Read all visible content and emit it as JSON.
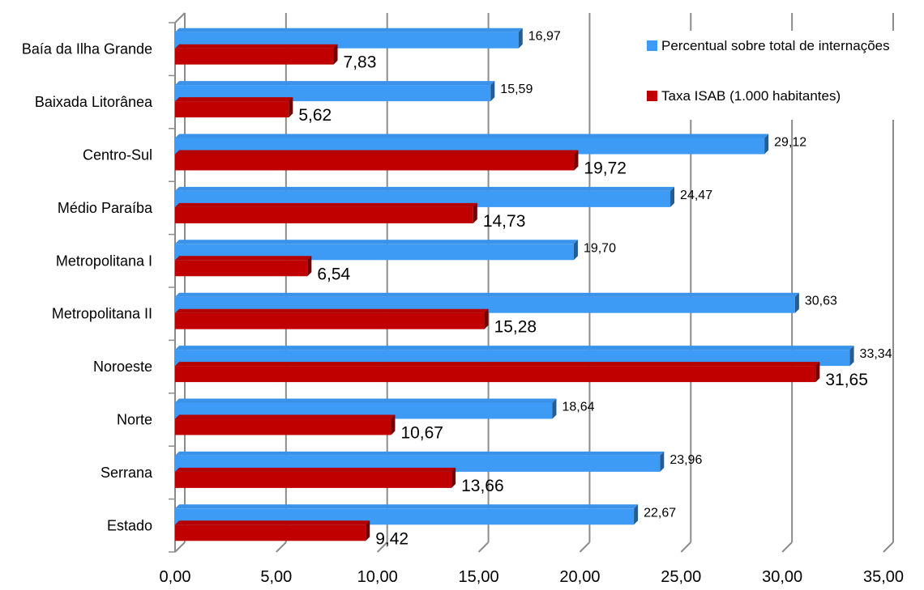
{
  "chart_data": {
    "type": "bar",
    "orientation": "horizontal",
    "categories": [
      "Baía da Ilha Grande",
      "Baixada Litorânea",
      "Centro-Sul",
      "Médio Paraíba",
      "Metropolitana I",
      "Metropolitana II",
      "Noroeste",
      "Norte",
      "Serrana",
      "Estado"
    ],
    "series": [
      {
        "name": "Percentual sobre total de internações",
        "color": "#3d9bf5",
        "values": [
          16.97,
          15.59,
          29.12,
          24.47,
          19.7,
          30.63,
          33.34,
          18.64,
          23.96,
          22.67
        ],
        "labels": [
          "16,97",
          "15,59",
          "29,12",
          "24,47",
          "19,70",
          "30,63",
          "33,34",
          "18,64",
          "23,96",
          "22,67"
        ]
      },
      {
        "name": "Taxa ISAB (1.000 habitantes)",
        "color": "#c00000",
        "values": [
          7.83,
          5.62,
          19.72,
          14.73,
          6.54,
          15.28,
          31.65,
          10.67,
          13.66,
          9.42
        ],
        "labels": [
          "7,83",
          "5,62",
          "19,72",
          "14,73",
          "6,54",
          "15,28",
          "31,65",
          "10,67",
          "13,66",
          "9,42"
        ]
      }
    ],
    "xlim": [
      0,
      35
    ],
    "x_ticks": [
      0,
      5,
      10,
      15,
      20,
      25,
      30,
      35
    ],
    "x_tick_labels": [
      "0,00",
      "5,00",
      "10,00",
      "15,00",
      "20,00",
      "25,00",
      "30,00",
      "35,00"
    ],
    "grid": true,
    "legend_position": "top-right",
    "title": "",
    "xlabel": "",
    "ylabel": ""
  }
}
